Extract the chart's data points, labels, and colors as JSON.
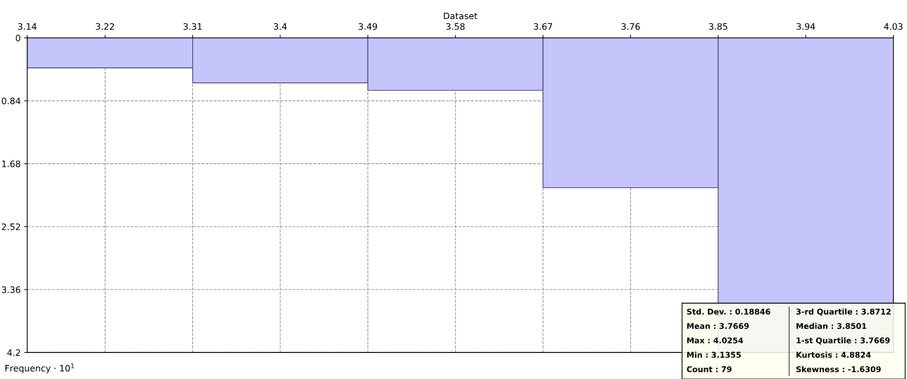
{
  "chart_data": {
    "type": "histogram",
    "xlabel": "Dataset",
    "ylabel": "Frequency · 10$^{1}$",
    "bins": [
      3.14,
      3.31,
      3.49,
      3.67,
      3.85,
      4.03
    ],
    "values": [
      0.4,
      0.6,
      0.7,
      2.0,
      4.2
    ],
    "color": "#c5c5fc",
    "xlim": [
      3.14,
      4.03
    ],
    "xticks": [
      3.14,
      3.22,
      3.31,
      3.4,
      3.49,
      3.58,
      3.67,
      3.76,
      3.85,
      3.94,
      4.03
    ],
    "ylim": [
      4.2,
      0
    ],
    "yticks": [
      0,
      0.84,
      1.68,
      2.52,
      3.36,
      4.2
    ],
    "grid": true,
    "legend": false,
    "annotations": [
      "Std. Dev. : 0.18846",
      "Mean : 3.7669",
      "Max : 4.0254",
      "Min : 3.1355",
      "Count : 79",
      "3-rd Quartile : 3.8712",
      "Median : 3.8501",
      "1-st Quartile : 3.7669",
      "Kurtosis : 4.8824",
      "Skewness : -1.6309"
    ]
  }
}
